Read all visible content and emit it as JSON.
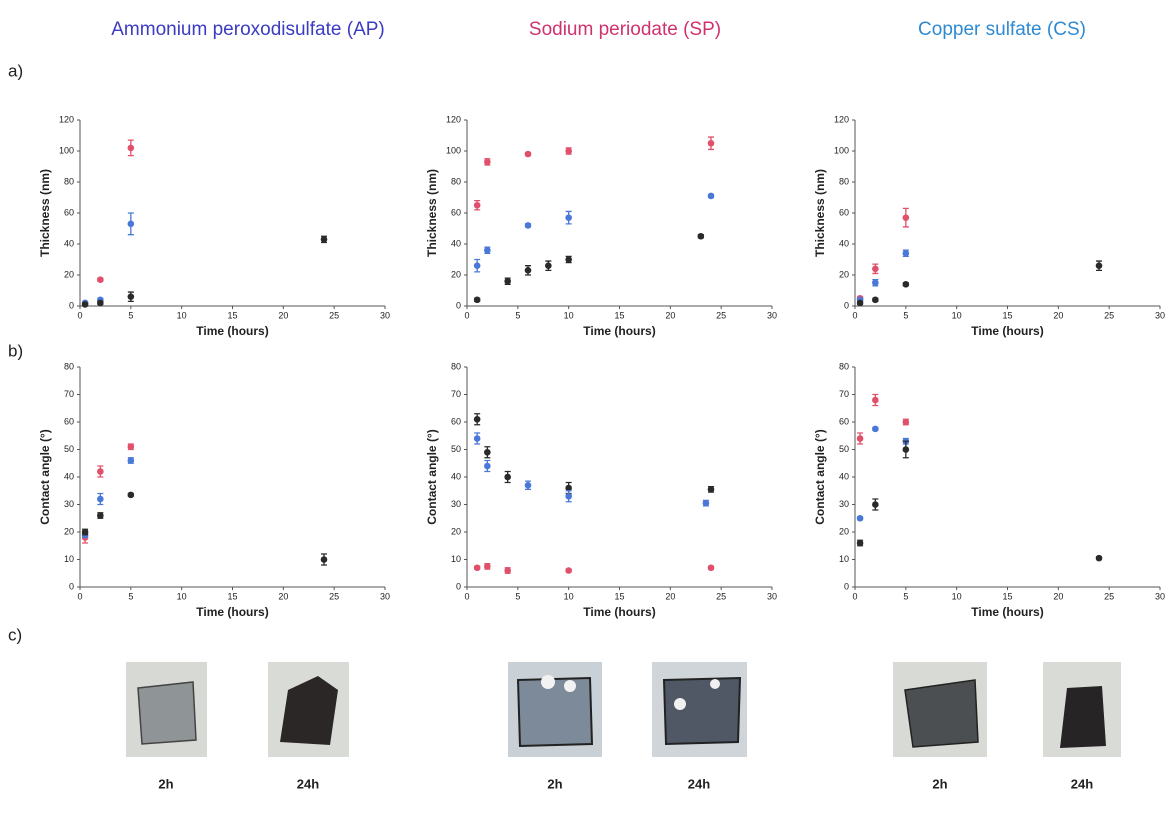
{
  "column_titles": [
    "Ammonium  peroxodisulfate (AP)",
    "Sodium periodate (SP)",
    "Copper sulfate (CS)"
  ],
  "column_title_colors": [
    "#3b3bc4",
    "#d0326e",
    "#2f8ad2"
  ],
  "panel_labels": [
    "a)",
    "b)",
    "c)"
  ],
  "photo_captions": [
    "2h",
    "24h",
    "2h",
    "24h",
    "2h",
    "24h"
  ],
  "chart_data": [
    {
      "type": "scatter",
      "xlabel": "Time (hours)",
      "ylabel": "Thickness (nm)",
      "xlim": [
        0,
        30
      ],
      "xticks": [
        0,
        5,
        10,
        15,
        20,
        25,
        30
      ],
      "ylim": [
        0,
        120
      ],
      "yticks": [
        0,
        20,
        40,
        60,
        80,
        100,
        120
      ],
      "series": [
        {
          "color": "#e0506a",
          "x": [
            0.5,
            2,
            5
          ],
          "values": [
            2,
            17,
            102
          ],
          "errors": [
            0.5,
            1,
            5
          ]
        },
        {
          "color": "#4a78d8",
          "x": [
            0.5,
            2,
            5
          ],
          "values": [
            2,
            4,
            53
          ],
          "errors": [
            0.5,
            1,
            7
          ]
        },
        {
          "color": "#2a2a2a",
          "x": [
            0.5,
            2,
            5,
            24
          ],
          "values": [
            1,
            2,
            6,
            43
          ],
          "errors": [
            0.5,
            1,
            3,
            2
          ]
        }
      ]
    },
    {
      "type": "scatter",
      "xlabel": "Time (hours)",
      "ylabel": "Thickness (nm)",
      "xlim": [
        0,
        30
      ],
      "xticks": [
        0,
        5,
        10,
        15,
        20,
        25,
        30
      ],
      "ylim": [
        0,
        120
      ],
      "yticks": [
        0,
        20,
        40,
        60,
        80,
        100,
        120
      ],
      "series": [
        {
          "color": "#e0506a",
          "x": [
            1,
            2,
            6,
            10,
            24
          ],
          "values": [
            65,
            93,
            98,
            100,
            105
          ],
          "errors": [
            3,
            2,
            1,
            2,
            4
          ]
        },
        {
          "color": "#4a78d8",
          "x": [
            1,
            2,
            6,
            10,
            24
          ],
          "values": [
            26,
            36,
            52,
            57,
            71
          ],
          "errors": [
            4,
            2,
            1,
            4,
            1
          ]
        },
        {
          "color": "#2a2a2a",
          "x": [
            1,
            4,
            6,
            8,
            10,
            23
          ],
          "values": [
            4,
            16,
            23,
            26,
            30,
            45
          ],
          "errors": [
            1,
            2,
            3,
            3,
            2,
            1
          ]
        }
      ]
    },
    {
      "type": "scatter",
      "xlabel": "Time (hours)",
      "ylabel": "Thickness (nm)",
      "xlim": [
        0,
        30
      ],
      "xticks": [
        0,
        5,
        10,
        15,
        20,
        25,
        30
      ],
      "ylim": [
        0,
        120
      ],
      "yticks": [
        0,
        20,
        40,
        60,
        80,
        100,
        120
      ],
      "series": [
        {
          "color": "#e0506a",
          "x": [
            0.5,
            2,
            5
          ],
          "values": [
            5,
            24,
            57
          ],
          "errors": [
            1,
            3,
            6
          ]
        },
        {
          "color": "#4a78d8",
          "x": [
            0.5,
            2,
            5
          ],
          "values": [
            4,
            15,
            34
          ],
          "errors": [
            1,
            2,
            2
          ]
        },
        {
          "color": "#2a2a2a",
          "x": [
            0.5,
            2,
            5,
            24
          ],
          "values": [
            2,
            4,
            14,
            26
          ],
          "errors": [
            1,
            1,
            1,
            3
          ]
        }
      ]
    },
    {
      "type": "scatter",
      "xlabel": "Time (hours)",
      "ylabel": "Contact angle (°)",
      "xlim": [
        0,
        30
      ],
      "xticks": [
        0,
        5,
        10,
        15,
        20,
        25,
        30
      ],
      "ylim": [
        0,
        80
      ],
      "yticks": [
        0,
        10,
        20,
        30,
        40,
        50,
        60,
        70,
        80
      ],
      "series": [
        {
          "color": "#e0506a",
          "x": [
            0.5,
            2,
            5
          ],
          "values": [
            18,
            42,
            51
          ],
          "errors": [
            2,
            2,
            1
          ]
        },
        {
          "color": "#4a78d8",
          "x": [
            0.5,
            2,
            5
          ],
          "values": [
            19,
            32,
            46
          ],
          "errors": [
            1,
            2,
            1
          ]
        },
        {
          "color": "#2a2a2a",
          "x": [
            0.5,
            2,
            5,
            24
          ],
          "values": [
            20,
            26,
            33.5,
            10
          ],
          "errors": [
            1,
            1,
            0.5,
            2
          ]
        }
      ]
    },
    {
      "type": "scatter",
      "xlabel": "Time (hours)",
      "ylabel": "Contact angle (°)",
      "xlim": [
        0,
        30
      ],
      "xticks": [
        0,
        5,
        10,
        15,
        20,
        25,
        30
      ],
      "ylim": [
        0,
        80
      ],
      "yticks": [
        0,
        10,
        20,
        30,
        40,
        50,
        60,
        70,
        80
      ],
      "series": [
        {
          "color": "#2a2a2a",
          "x": [
            1,
            2,
            4,
            10,
            24
          ],
          "values": [
            61,
            49,
            40,
            36,
            35.5
          ],
          "errors": [
            2,
            2,
            2,
            2,
            1
          ]
        },
        {
          "color": "#4a78d8",
          "x": [
            1,
            2,
            6,
            10,
            23.5
          ],
          "values": [
            54,
            44,
            37,
            33,
            30.5
          ],
          "errors": [
            2,
            2,
            1.5,
            2,
            1
          ]
        },
        {
          "color": "#e0506a",
          "x": [
            1,
            2,
            4,
            10,
            24
          ],
          "values": [
            7,
            7.5,
            6,
            6,
            7
          ],
          "errors": [
            0.5,
            1,
            1,
            0.5,
            0.5
          ]
        }
      ]
    },
    {
      "type": "scatter",
      "xlabel": "Time (hours)",
      "ylabel": "Contact angle (°)",
      "xlim": [
        0,
        30
      ],
      "xticks": [
        0,
        5,
        10,
        15,
        20,
        25,
        30
      ],
      "ylim": [
        0,
        80
      ],
      "yticks": [
        0,
        10,
        20,
        30,
        40,
        50,
        60,
        70,
        80
      ],
      "series": [
        {
          "color": "#e0506a",
          "x": [
            0.5,
            2,
            5
          ],
          "values": [
            54,
            68,
            60
          ],
          "errors": [
            2,
            2,
            1
          ]
        },
        {
          "color": "#4a78d8",
          "x": [
            0.5,
            2,
            5
          ],
          "values": [
            25,
            57.5,
            53
          ],
          "errors": [
            0.5,
            0.5,
            1
          ]
        },
        {
          "color": "#2a2a2a",
          "x": [
            0.5,
            2,
            5,
            24
          ],
          "values": [
            16,
            30,
            50,
            10.5
          ],
          "errors": [
            1,
            2,
            3,
            0.5
          ]
        }
      ]
    }
  ]
}
